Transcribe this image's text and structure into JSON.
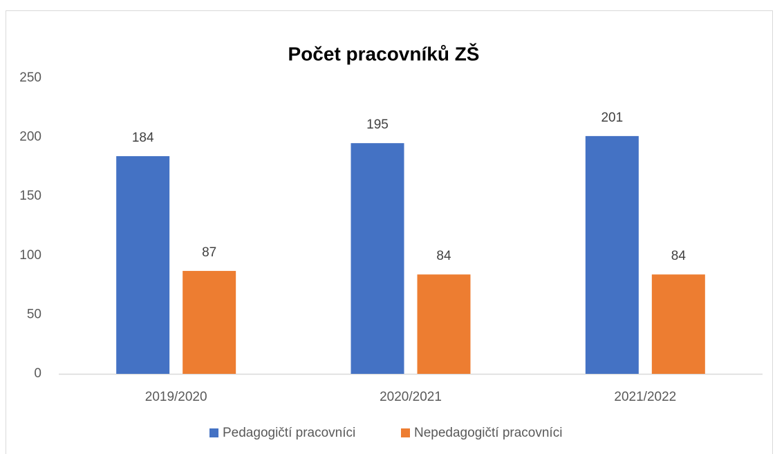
{
  "chart_data": {
    "type": "bar",
    "title": "Počet pracovníků ZŠ",
    "categories": [
      "2019/2020",
      "2020/2021",
      "2021/2022"
    ],
    "series": [
      {
        "name": "Pedagogičtí pracovníci",
        "color": "#4472c4",
        "values": [
          184,
          195,
          201
        ]
      },
      {
        "name": "Nepedagogičtí pracovníci",
        "color": "#ed7d31",
        "values": [
          87,
          84,
          84
        ]
      }
    ],
    "ylim": [
      0,
      250
    ],
    "yticks": [
      0,
      50,
      100,
      150,
      200,
      250
    ],
    "grid": false,
    "legend": "bottom"
  }
}
